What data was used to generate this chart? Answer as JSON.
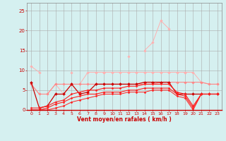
{
  "x": [
    0,
    1,
    2,
    3,
    4,
    5,
    6,
    7,
    8,
    9,
    10,
    11,
    12,
    13,
    14,
    15,
    16,
    17,
    18,
    19,
    20,
    21,
    22,
    23
  ],
  "series": [
    {
      "name": "light_pink_high",
      "color": "#FFB0B0",
      "linewidth": 0.7,
      "markersize": 1.8,
      "y": [
        11.0,
        9.5,
        null,
        null,
        null,
        9.5,
        null,
        null,
        null,
        9.5,
        null,
        null,
        13.5,
        null,
        15.0,
        17.0,
        22.5,
        20.5,
        null,
        9.5,
        null,
        null,
        null,
        null
      ]
    },
    {
      "name": "light_pink_mid",
      "color": "#FFB0B0",
      "linewidth": 0.7,
      "markersize": 1.8,
      "y": [
        6.5,
        4.0,
        4.0,
        6.5,
        4.0,
        6.5,
        6.5,
        9.5,
        9.5,
        9.5,
        9.5,
        9.5,
        9.5,
        9.5,
        9.5,
        9.5,
        9.5,
        9.5,
        9.5,
        9.5,
        9.5,
        7.0,
        6.5,
        6.5
      ]
    },
    {
      "name": "dark_pink_flat",
      "color": "#FF8888",
      "linewidth": 0.8,
      "markersize": 1.8,
      "y": [
        6.5,
        4.0,
        4.0,
        6.5,
        6.5,
        6.5,
        6.5,
        6.5,
        6.5,
        6.5,
        6.5,
        6.5,
        6.5,
        6.5,
        6.5,
        6.5,
        7.0,
        7.0,
        7.0,
        7.0,
        7.0,
        7.0,
        6.5,
        6.5
      ]
    },
    {
      "name": "dark_red_upper",
      "color": "#CC0000",
      "linewidth": 0.9,
      "markersize": 2.0,
      "y": [
        7.0,
        0.5,
        1.0,
        4.0,
        4.0,
        6.5,
        4.0,
        4.5,
        6.5,
        6.5,
        6.5,
        6.5,
        6.5,
        6.5,
        7.0,
        7.0,
        7.0,
        7.0,
        4.0,
        4.0,
        4.0,
        4.0,
        4.0,
        4.0
      ]
    },
    {
      "name": "red_line1",
      "color": "#FF2020",
      "linewidth": 0.8,
      "markersize": 1.5,
      "y": [
        0.5,
        0.5,
        1.0,
        2.0,
        2.5,
        4.0,
        4.5,
        5.0,
        5.0,
        5.5,
        5.5,
        5.5,
        6.0,
        6.0,
        6.5,
        6.5,
        6.5,
        6.5,
        4.5,
        4.0,
        1.0,
        4.0,
        4.0,
        4.0
      ]
    },
    {
      "name": "red_line2",
      "color": "#FF2020",
      "linewidth": 0.8,
      "markersize": 1.5,
      "y": [
        0.0,
        0.0,
        0.5,
        1.5,
        2.0,
        3.0,
        3.5,
        4.0,
        4.0,
        4.5,
        4.5,
        4.5,
        5.0,
        5.0,
        5.5,
        5.5,
        5.5,
        5.5,
        4.0,
        3.5,
        0.5,
        4.0,
        4.0,
        4.0
      ]
    },
    {
      "name": "red_line3",
      "color": "#FF2020",
      "linewidth": 0.7,
      "markersize": 1.5,
      "y": [
        0.0,
        0.0,
        0.0,
        0.5,
        1.0,
        2.0,
        2.5,
        3.0,
        3.5,
        4.0,
        4.0,
        4.0,
        4.5,
        4.5,
        4.5,
        5.0,
        5.0,
        5.0,
        3.5,
        3.0,
        0.0,
        4.0,
        4.0,
        4.0
      ]
    }
  ],
  "xlabel": "Vent moyen/en rafales ( km/h )",
  "xlim": [
    -0.5,
    23.5
  ],
  "ylim": [
    0,
    27
  ],
  "yticks": [
    0,
    5,
    10,
    15,
    20,
    25
  ],
  "xticks": [
    0,
    1,
    2,
    3,
    4,
    5,
    6,
    7,
    8,
    9,
    10,
    11,
    12,
    13,
    14,
    15,
    16,
    17,
    18,
    19,
    20,
    21,
    22,
    23
  ],
  "bg_color": "#d5f0f0",
  "grid_color": "#aaaaaa",
  "tick_color": "#CC0000",
  "label_color": "#CC0000"
}
